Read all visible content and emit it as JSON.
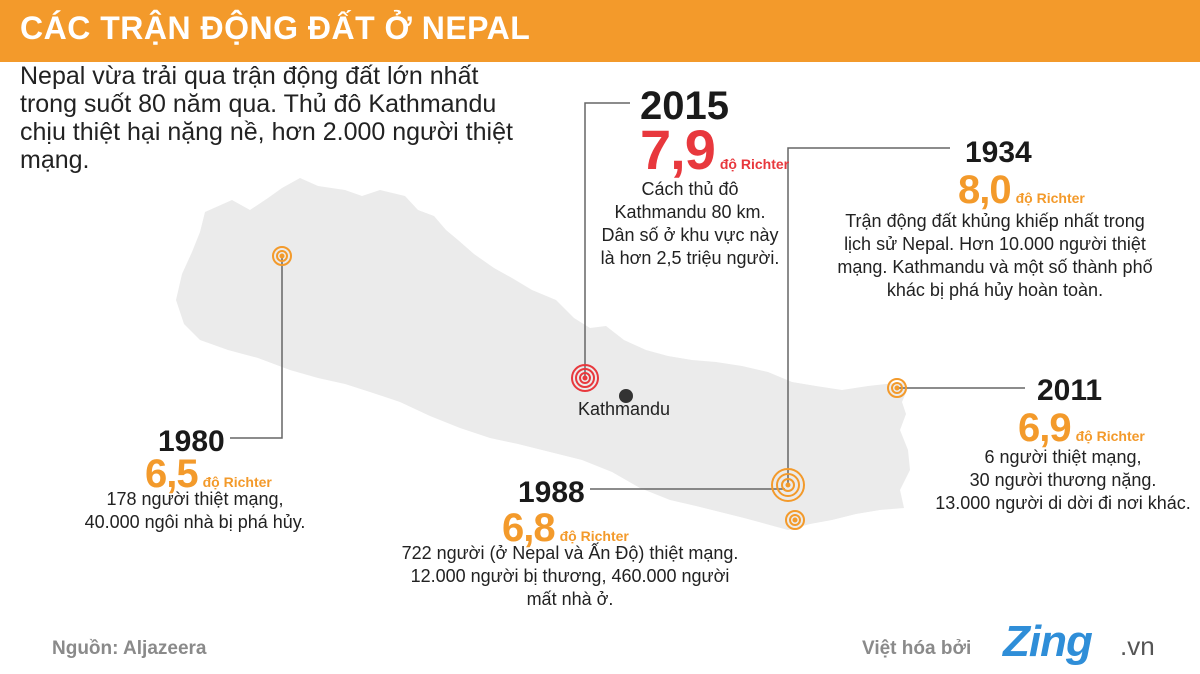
{
  "header": {
    "title": "CÁC TRẬN ĐỘNG ĐẤT Ở NEPAL"
  },
  "intro": "Nepal vừa trải qua trận động đất lớn nhất trong suốt 80 năm qua. Thủ đô Kathmandu chịu thiệt hại nặng nề, hơn 2.000 người thiệt mạng.",
  "unit_label": "độ Richter",
  "city": "Kathmandu",
  "colors": {
    "header": "#f39a2b",
    "orange": "#f39a2b",
    "red": "#e8383d",
    "map": "#ebebeb",
    "logo": "#2f8ed8"
  },
  "events": [
    {
      "year": "2015",
      "magnitude": "7,9",
      "color": "#e8383d",
      "lines": [
        "Cách thủ đô",
        "Kathmandu 80 km.",
        "Dân số ở khu vực này",
        "là hơn 2,5 triệu người."
      ]
    },
    {
      "year": "1934",
      "magnitude": "8,0",
      "color": "#f39a2b",
      "lines": [
        "Trận động đất khủng khiếp nhất trong",
        "lịch sử Nepal. Hơn 10.000 người thiệt",
        "mạng. Kathmandu và một số thành phố",
        "khác bị phá hủy hoàn toàn."
      ]
    },
    {
      "year": "2011",
      "magnitude": "6,9",
      "color": "#f39a2b",
      "lines": [
        "6 người thiệt mạng,",
        "30 người thương nặng.",
        "13.000 người di dời đi nơi khác."
      ]
    },
    {
      "year": "1980",
      "magnitude": "6,5",
      "color": "#f39a2b",
      "lines": [
        "178 người thiệt mạng,",
        "40.000 ngôi nhà bị phá hủy."
      ]
    },
    {
      "year": "1988",
      "magnitude": "6,8",
      "color": "#f39a2b",
      "lines": [
        "722 người (ở Nepal và Ấn Độ) thiệt mạng.",
        "12.000 người bị thương, 460.000 người",
        "mất nhà ở."
      ]
    }
  ],
  "footer": {
    "source": "Nguồn: Aljazeera",
    "credit": "Việt hóa bởi",
    "logo_main": "Zing",
    "logo_suffix": ".vn"
  }
}
